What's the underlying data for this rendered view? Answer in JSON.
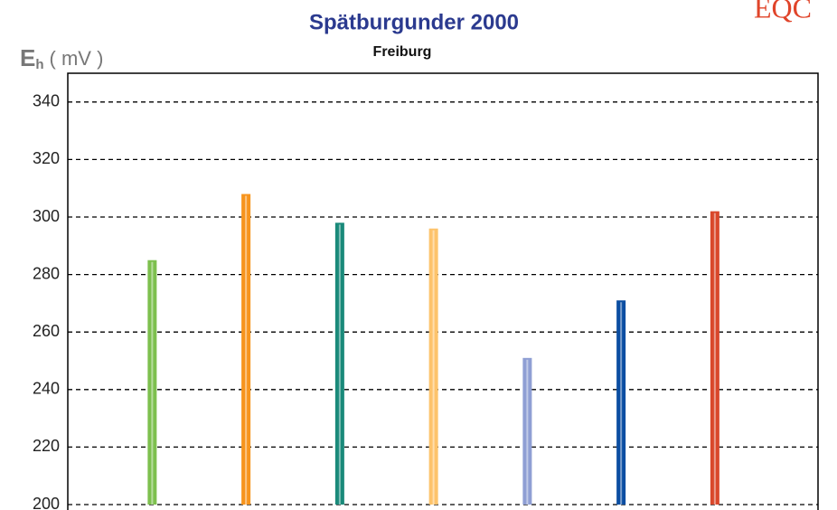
{
  "chart_data": {
    "type": "bar",
    "title": "Spätburgunder 2000",
    "subtitle": "Freiburg",
    "y_label": {
      "symbol": "E",
      "subscript": "h",
      "unit": "( mV )"
    },
    "logo": "EQC",
    "categories": [
      null,
      null,
      null,
      null,
      null,
      null,
      null
    ],
    "values": [
      285,
      308,
      298,
      296,
      251,
      271,
      302
    ],
    "colors": [
      "#7dc04e",
      "#f7941d",
      "#1a8a7a",
      "#fdc36b",
      "#8f9fd4",
      "#0b4ea2",
      "#d9472b"
    ],
    "ylim": [
      200,
      350
    ],
    "yticks": [
      200,
      220,
      240,
      260,
      280,
      300,
      320,
      340
    ],
    "grid": true
  }
}
